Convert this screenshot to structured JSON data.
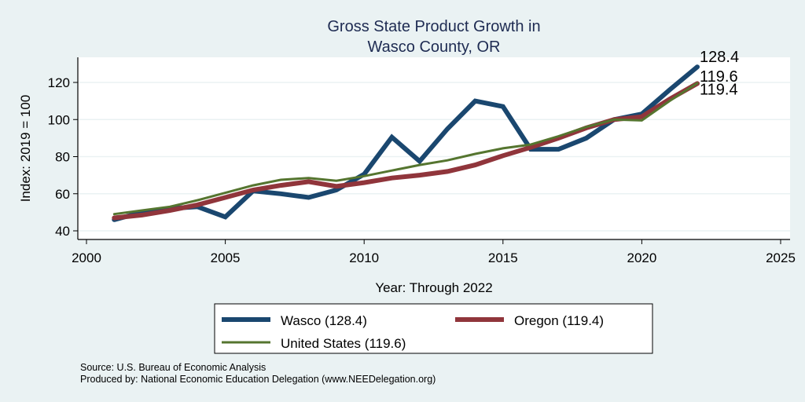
{
  "chart_data": {
    "type": "line",
    "title": [
      "Gross State Product Growth in",
      "Wasco County, OR"
    ],
    "xlabel": "Year: Through 2022",
    "ylabel": "Index: 2019 = 100",
    "xlim": [
      2000,
      2025
    ],
    "ylim": [
      40,
      130
    ],
    "xticks": [
      2000,
      2005,
      2010,
      2015,
      2020,
      2025
    ],
    "yticks": [
      40,
      60,
      80,
      100,
      120
    ],
    "grid": "horizontal",
    "legend_placement": "bottom",
    "x": [
      2001,
      2002,
      2003,
      2004,
      2005,
      2006,
      2007,
      2008,
      2009,
      2010,
      2011,
      2012,
      2013,
      2014,
      2015,
      2016,
      2017,
      2018,
      2019,
      2020,
      2021,
      2022
    ],
    "series": [
      {
        "name": "Wasco",
        "legend_label": "Wasco  (128.4)",
        "color": "#1a476f",
        "end_label": "128.4",
        "values": [
          46,
          50,
          52,
          53,
          47.5,
          61.5,
          60,
          58,
          62,
          70.5,
          90.5,
          77.5,
          95,
          110,
          107,
          84,
          84,
          90,
          100,
          103,
          116,
          128.4
        ]
      },
      {
        "name": "Oregon",
        "legend_label": "Oregon (119.4)",
        "color": "#90353b",
        "end_label": "119.4",
        "values": [
          47,
          48.5,
          51,
          54,
          58,
          62,
          64.5,
          66.5,
          64,
          66,
          68.5,
          70,
          72,
          75.5,
          80.5,
          85,
          90,
          95.5,
          100,
          101.5,
          111,
          119.4
        ]
      },
      {
        "name": "United States",
        "legend_label": "United States (119.6)",
        "color": "#55752f",
        "end_label": "119.6",
        "values": [
          49,
          51,
          53,
          56.5,
          60.5,
          64.5,
          67.5,
          68.5,
          67,
          69.5,
          72.5,
          75.5,
          78,
          81.5,
          84.5,
          86.5,
          91,
          96,
          100,
          99.5,
          110,
          119.6
        ]
      }
    ],
    "notes": [
      "Source: U.S. Bureau of Economic Analysis",
      "Produced by: National Economic Education Delegation (www.NEEDelegation.org)"
    ]
  },
  "colors": {
    "background": "#eaf2f3",
    "plot_background": "#ffffff",
    "gridline": "#eaf2f3",
    "title": "#1e2b52"
  }
}
